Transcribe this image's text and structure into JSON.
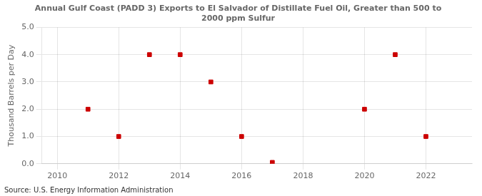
{
  "chart_data": {
    "type": "scatter",
    "title": "Annual Gulf Coast (PADD 3) Exports to El Salvador of Distillate Fuel Oil, Greater than 500 to\n2000 ppm Sulfur",
    "y_label": "Thousand Barrels per Day",
    "source": "Source: U.S. Energy Information Administration",
    "x": [
      2011,
      2012,
      2013,
      2014,
      2015,
      2016,
      2017,
      2020,
      2021,
      2022
    ],
    "values": [
      2.0,
      1.0,
      4.0,
      4.0,
      3.0,
      1.0,
      0.05,
      2.0,
      4.0,
      1.0
    ],
    "color": "#cc0000",
    "marker": "square",
    "xlim": [
      2009.5,
      2023.5
    ],
    "ylim": [
      0.0,
      5.0
    ],
    "xticks": [
      2010,
      2012,
      2014,
      2016,
      2018,
      2020,
      2022
    ],
    "yticks": [
      {
        "value": 0,
        "label": "0.0"
      },
      {
        "value": 1,
        "label": "1.0"
      },
      {
        "value": 2,
        "label": "2.0"
      },
      {
        "value": 3,
        "label": "3.0"
      },
      {
        "value": 4,
        "label": "4.0"
      },
      {
        "value": 5,
        "label": "5.0"
      }
    ],
    "grid": true
  }
}
